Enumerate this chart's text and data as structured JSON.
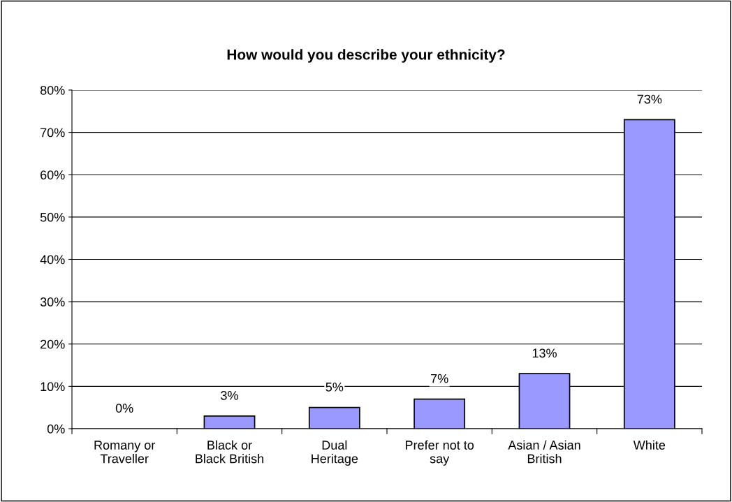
{
  "chart_data": {
    "type": "bar",
    "title": "How would you describe your ethnicity?",
    "categories": [
      "Romany or\nTraveller",
      "Black or\nBlack British",
      "Dual\nHeritage",
      "Prefer not to\nsay",
      "Asian / Asian\nBritish",
      "White"
    ],
    "values": [
      0,
      3,
      5,
      7,
      13,
      73
    ],
    "color": "#9999ff",
    "value_labels": [
      "0%",
      "3%",
      "5%",
      "7%",
      "13%",
      "73%"
    ],
    "ylim": [
      0,
      80
    ],
    "yticks": [
      {
        "value": 0,
        "label": "0%"
      },
      {
        "value": 10,
        "label": "10%"
      },
      {
        "value": 20,
        "label": "20%"
      },
      {
        "value": 30,
        "label": "30%"
      },
      {
        "value": 40,
        "label": "40%"
      },
      {
        "value": 50,
        "label": "50%"
      },
      {
        "value": 60,
        "label": "60%"
      },
      {
        "value": 70,
        "label": "70%"
      },
      {
        "value": 80,
        "label": "80%"
      }
    ],
    "grid": "y",
    "legend": false
  }
}
